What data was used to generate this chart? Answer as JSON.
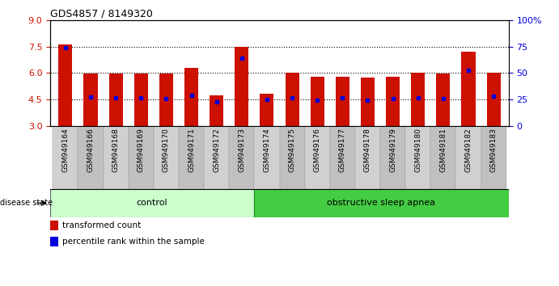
{
  "title": "GDS4857 / 8149320",
  "samples": [
    "GSM949164",
    "GSM949166",
    "GSM949168",
    "GSM949169",
    "GSM949170",
    "GSM949171",
    "GSM949172",
    "GSM949173",
    "GSM949174",
    "GSM949175",
    "GSM949176",
    "GSM949177",
    "GSM949178",
    "GSM949179",
    "GSM949180",
    "GSM949181",
    "GSM949182",
    "GSM949183"
  ],
  "bar_tops": [
    7.6,
    5.95,
    5.95,
    5.95,
    5.95,
    6.3,
    4.75,
    7.5,
    4.8,
    6.0,
    5.8,
    5.8,
    5.75,
    5.8,
    6.0,
    5.95,
    7.2,
    6.0
  ],
  "blue_dots": [
    7.45,
    4.62,
    4.58,
    4.58,
    4.55,
    4.72,
    4.35,
    6.85,
    4.48,
    4.6,
    4.45,
    4.58,
    4.45,
    4.53,
    4.58,
    4.55,
    6.15,
    4.68
  ],
  "bar_bottom": 3.0,
  "ylim": [
    3.0,
    9.0
  ],
  "y_ticks_left": [
    3,
    4.5,
    6,
    7.5,
    9
  ],
  "y_ticks_right": [
    0,
    25,
    50,
    75,
    100
  ],
  "dotted_lines": [
    4.5,
    6.0,
    7.5
  ],
  "bar_color": "#CC1100",
  "dot_color": "#0000DD",
  "control_samples": 8,
  "total_samples": 18,
  "control_label": "control",
  "disease_label": "obstructive sleep apnea",
  "control_color": "#CCFFCC",
  "disease_color": "#44CC44",
  "legend_red_label": "transformed count",
  "legend_blue_label": "percentile rank within the sample",
  "bar_width": 0.55,
  "title_fontsize": 9,
  "tick_fontsize": 6.5,
  "ytick_fontsize": 8,
  "disease_state_label": "disease state",
  "left_tick_color": "#CC1100",
  "right_tick_color": "#0000DD",
  "xtick_bg_color": "#D0D0D0"
}
